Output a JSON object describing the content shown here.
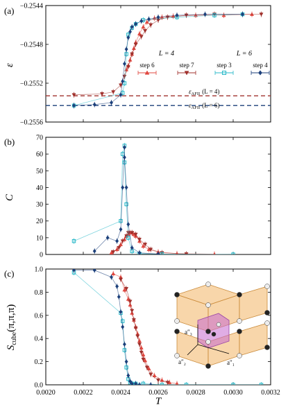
{
  "chart_data": [
    {
      "type": "scatter",
      "panel_label": "(a)",
      "ylabel": "ε",
      "ylim": [
        -0.2556,
        -0.2544
      ],
      "yticks": [
        -0.2556,
        -0.2552,
        -0.2548,
        -0.2544
      ],
      "ytick_labels": [
        "−0.2556",
        "−0.2552",
        "−0.2548",
        "−0.2544"
      ],
      "reference_lines": [
        {
          "label_main": "ε",
          "label_sub": "AFII",
          "label_tail": "(L = 4)",
          "value": -0.25533,
          "color": "#a0302c"
        },
        {
          "label_main": "ε",
          "label_sub": "AFII",
          "label_tail": "(L = 6)",
          "value": -0.25543,
          "color": "#1b3f7a"
        }
      ],
      "legend": {
        "placement": "right",
        "group_headers": [
          "L = 4",
          "L = 6"
        ],
        "entries": [
          "step 6",
          "step 7",
          "step 3",
          "step 4"
        ]
      },
      "series": [
        {
          "name": "step 6",
          "marker": "triangle-up",
          "color": "#e0473f",
          "x": [
            0.00243,
            0.00244,
            0.00245,
            0.00246,
            0.00247,
            0.00248,
            0.0025,
            0.00252,
            0.00254,
            0.00258,
            0.00262,
            0.00268,
            0.0028,
            0.00295,
            0.0031
          ],
          "y": [
            -0.25506,
            -0.25502,
            -0.25496,
            -0.2549,
            -0.25484,
            -0.25478,
            -0.25469,
            -0.25462,
            -0.25457,
            -0.25453,
            -0.25452,
            -0.25451,
            -0.2545,
            -0.2545,
            -0.25449
          ]
        },
        {
          "name": "step 7",
          "marker": "triangle-down",
          "color": "#a0302c",
          "x": [
            0.00215,
            0.0023,
            0.00236,
            0.0024,
            0.00242,
            0.00244,
            0.00246,
            0.00248,
            0.00251,
            0.00253,
            0.00256,
            0.0026,
            0.00265,
            0.00275,
            0.0029,
            0.00315
          ],
          "y": [
            -0.25532,
            -0.25531,
            -0.25529,
            -0.25522,
            -0.25513,
            -0.25503,
            -0.2549,
            -0.2548,
            -0.25472,
            -0.25466,
            -0.2546,
            -0.25455,
            -0.25452,
            -0.2545,
            -0.25449,
            -0.25449
          ]
        },
        {
          "name": "step 3",
          "marker": "square",
          "color": "#27b8c8",
          "x": [
            0.00215,
            0.00241,
            0.00242,
            0.00243,
            0.00244,
            0.00246,
            0.00248,
            0.00252,
            0.0027,
            0.0029,
            0.00305
          ],
          "y": [
            -0.25543,
            -0.2553,
            -0.2552,
            -0.2549,
            -0.2547,
            -0.25463,
            -0.25459,
            -0.25455,
            -0.25452,
            -0.2545,
            -0.25449
          ]
        },
        {
          "name": "step 4",
          "marker": "diamond",
          "color": "#1b3f7a",
          "x": [
            0.00215,
            0.00226,
            0.00235,
            0.0024,
            0.00241,
            0.00242,
            0.00243,
            0.00244,
            0.00245,
            0.00246,
            0.00248,
            0.00251,
            0.00255,
            0.0026,
            0.0027,
            0.00285,
            0.00305
          ],
          "y": [
            -0.25543,
            -0.25542,
            -0.2554,
            -0.25532,
            -0.25518,
            -0.255,
            -0.25485,
            -0.25473,
            -0.25467,
            -0.25462,
            -0.25459,
            -0.25456,
            -0.25454,
            -0.25452,
            -0.2545,
            -0.25449,
            -0.25449
          ]
        }
      ]
    },
    {
      "type": "scatter",
      "panel_label": "(b)",
      "ylabel": "C",
      "ylim": [
        0,
        70
      ],
      "yticks": [
        0,
        10,
        20,
        30,
        40,
        50,
        60,
        70
      ],
      "ytick_labels": [
        "0",
        "10",
        "20",
        "30",
        "40",
        "50",
        "60",
        "70"
      ],
      "series": [
        {
          "name": "step 6",
          "marker": "triangle-up",
          "color": "#e0473f",
          "x": [
            0.00235,
            0.00238,
            0.0024,
            0.00242,
            0.00243,
            0.00244,
            0.00245,
            0.00246,
            0.00247,
            0.00248,
            0.0025,
            0.00252,
            0.00255,
            0.0026,
            0.0027,
            0.0029
          ],
          "y": [
            1,
            3,
            6,
            9,
            11,
            12,
            13,
            13,
            12,
            11,
            8,
            5,
            3,
            1.5,
            0.5,
            0.2
          ]
        },
        {
          "name": "step 7",
          "marker": "triangle-down",
          "color": "#a0302c",
          "x": [
            0.00236,
            0.00239,
            0.00241,
            0.00243,
            0.00244,
            0.00246,
            0.00248,
            0.0025,
            0.00253,
            0.00256,
            0.00262,
            0.00275
          ],
          "y": [
            1.5,
            4,
            8,
            11,
            13,
            13,
            12,
            9,
            6,
            3,
            1,
            0.3
          ]
        },
        {
          "name": "step 3",
          "marker": "square",
          "color": "#27b8c8",
          "x": [
            0.00215,
            0.0024,
            0.00241,
            0.00242,
            0.00242,
            0.00243,
            0.00244,
            0.00246,
            0.0025,
            0.00262,
            0.003
          ],
          "y": [
            8,
            20,
            60,
            65,
            55,
            30,
            10,
            2,
            0.5,
            0.2,
            0
          ]
        },
        {
          "name": "step 4",
          "marker": "diamond",
          "color": "#1b3f7a",
          "x": [
            0.00226,
            0.00233,
            0.00238,
            0.0024,
            0.00241,
            0.00242,
            0.00242,
            0.00243,
            0.00244,
            0.00246,
            0.0025,
            0.0026
          ],
          "y": [
            2,
            10,
            8,
            15,
            40,
            64,
            58,
            40,
            18,
            4,
            1,
            0.3
          ]
        }
      ]
    },
    {
      "type": "scatter",
      "panel_label": "(c)",
      "ylabel_main": "S",
      "ylabel_sub": "cube",
      "ylabel_tail": "(π,π,π)",
      "xlabel": "T",
      "xlim": [
        0.002,
        0.0032
      ],
      "xticks": [
        0.002,
        0.0022,
        0.0024,
        0.0026,
        0.0028,
        0.003,
        0.0032
      ],
      "xtick_labels": [
        "0.0020",
        "0.0022",
        "0.0024",
        "0.0026",
        "0.0028",
        "0.0030",
        "0.0032"
      ],
      "ylim": [
        0,
        1.0
      ],
      "yticks": [
        0,
        0.2,
        0.4,
        0.6,
        0.8,
        1.0
      ],
      "ytick_labels": [
        "0.0",
        "0.2",
        "0.4",
        "0.6",
        "0.8",
        "1.0"
      ],
      "inset_labels": [
        "a″₃",
        "a″₂",
        "a″₁"
      ],
      "series": [
        {
          "name": "step 6",
          "marker": "triangle-up",
          "color": "#e0473f",
          "x": [
            0.00236,
            0.0024,
            0.00242,
            0.00244,
            0.00245,
            0.00246,
            0.00247,
            0.00248,
            0.00249,
            0.0025,
            0.00251,
            0.00252,
            0.00253,
            0.00255,
            0.00258,
            0.00262,
            0.00266,
            0.0027
          ],
          "y": [
            0.96,
            0.93,
            0.82,
            0.74,
            0.69,
            0.62,
            0.56,
            0.5,
            0.44,
            0.38,
            0.32,
            0.26,
            0.21,
            0.14,
            0.08,
            0.04,
            0.02,
            0.01
          ]
        },
        {
          "name": "step 7",
          "marker": "triangle-down",
          "color": "#a0302c",
          "x": [
            0.0024,
            0.00243,
            0.00245,
            0.00246,
            0.00247,
            0.00248,
            0.00249,
            0.0025,
            0.00251,
            0.00252,
            0.00254,
            0.00256,
            0.0026,
            0.00265
          ],
          "y": [
            0.91,
            0.83,
            0.72,
            0.64,
            0.56,
            0.49,
            0.42,
            0.35,
            0.28,
            0.22,
            0.15,
            0.09,
            0.04,
            0.02
          ]
        },
        {
          "name": "step 3",
          "marker": "square",
          "color": "#27b8c8",
          "x": [
            0.00215,
            0.0024,
            0.00241,
            0.00242,
            0.00243,
            0.00244,
            0.00245,
            0.00246,
            0.00248,
            0.00252,
            0.00262,
            0.00275,
            0.003,
            0.00315
          ],
          "y": [
            0.97,
            0.62,
            0.55,
            0.3,
            0.15,
            0.05,
            0.02,
            0.01,
            0.01,
            0.01,
            0.0,
            0.0,
            0.0,
            0.0
          ]
        },
        {
          "name": "step 4",
          "marker": "diamond",
          "color": "#1b3f7a",
          "x": [
            0.00215,
            0.00226,
            0.00235,
            0.00238,
            0.00239,
            0.0024,
            0.00241,
            0.00242,
            0.00243,
            0.00244,
            0.00245,
            0.00246,
            0.00248,
            0.0025,
            0.00256
          ],
          "y": [
            0.99,
            0.99,
            0.93,
            0.85,
            0.76,
            0.63,
            0.5,
            0.35,
            0.2,
            0.08,
            0.03,
            0.01,
            0.01,
            0.0,
            0.0
          ]
        }
      ]
    }
  ]
}
